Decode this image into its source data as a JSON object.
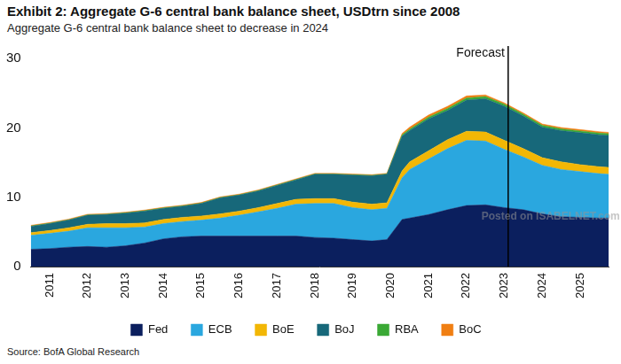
{
  "chart_data": {
    "type": "area",
    "title": "Exhibit 2: Aggregate G-6 central bank balance sheet, USDtrn since 2008",
    "subtitle": "Aggregate G-6 central bank balance sheet to decrease in 2024",
    "source": "Source: BofA Global Research",
    "annotations": [
      {
        "text": "Forecast",
        "x": 2023.1
      }
    ],
    "watermark": "Posted on ISABELNET.com",
    "stacked": true,
    "grid": false,
    "legend": "bottom",
    "x": [
      2010.5,
      2011,
      2011.5,
      2012,
      2012.5,
      2013,
      2013.5,
      2014,
      2014.5,
      2015,
      2015.5,
      2016,
      2016.5,
      2017,
      2017.5,
      2018,
      2018.5,
      2019,
      2019.5,
      2019.9,
      2020.3,
      2020.5,
      2021,
      2021.5,
      2022,
      2022.5,
      2023,
      2023.5,
      2024,
      2024.5,
      2025,
      2025.5,
      2025.75
    ],
    "xlim": [
      2010.5,
      2025.75
    ],
    "xticks": [
      2011,
      2012,
      2013,
      2014,
      2015,
      2016,
      2017,
      2018,
      2019,
      2020,
      2021,
      2022,
      2023,
      2024,
      2025
    ],
    "ylim": [
      0,
      30
    ],
    "yticks": [
      0,
      10,
      20,
      30
    ],
    "series": [
      {
        "name": "Fed",
        "color": "#0b1f5e",
        "values": [
          2.5,
          2.6,
          2.8,
          2.9,
          2.8,
          3.0,
          3.4,
          4.0,
          4.3,
          4.4,
          4.4,
          4.4,
          4.4,
          4.4,
          4.4,
          4.2,
          4.1,
          3.9,
          3.7,
          3.9,
          6.8,
          7.0,
          7.5,
          8.2,
          8.8,
          8.9,
          8.5,
          8.2,
          7.6,
          7.2,
          7.1,
          7.0,
          7.0
        ]
      },
      {
        "name": "ECB",
        "color": "#2aa7df",
        "values": [
          2.0,
          2.2,
          2.3,
          2.7,
          2.8,
          2.6,
          2.3,
          2.2,
          2.2,
          2.3,
          2.6,
          3.0,
          3.5,
          4.0,
          4.6,
          4.9,
          5.0,
          4.6,
          4.5,
          4.5,
          6.0,
          7.0,
          8.0,
          8.8,
          9.4,
          9.2,
          8.4,
          7.6,
          7.0,
          6.8,
          6.6,
          6.4,
          6.3
        ]
      },
      {
        "name": "BoE",
        "color": "#f2b705",
        "values": [
          0.4,
          0.4,
          0.5,
          0.5,
          0.6,
          0.6,
          0.6,
          0.6,
          0.6,
          0.6,
          0.6,
          0.6,
          0.6,
          0.7,
          0.7,
          0.7,
          0.7,
          0.8,
          0.8,
          0.8,
          1.0,
          1.1,
          1.2,
          1.3,
          1.3,
          1.3,
          1.3,
          1.2,
          1.1,
          1.1,
          1.0,
          1.0,
          1.0
        ]
      },
      {
        "name": "BoJ",
        "color": "#17687a",
        "values": [
          0.9,
          1.0,
          1.1,
          1.3,
          1.3,
          1.5,
          1.7,
          1.6,
          1.6,
          1.8,
          2.3,
          2.3,
          2.4,
          2.6,
          2.8,
          3.5,
          3.5,
          3.9,
          4.1,
          4.1,
          5.0,
          4.5,
          4.6,
          4.2,
          4.5,
          4.8,
          4.9,
          4.7,
          4.4,
          4.5,
          4.6,
          4.6,
          4.6
        ]
      },
      {
        "name": "RBA",
        "color": "#3aa935",
        "values": [
          0.05,
          0.05,
          0.05,
          0.05,
          0.05,
          0.05,
          0.05,
          0.05,
          0.05,
          0.05,
          0.05,
          0.05,
          0.05,
          0.05,
          0.05,
          0.05,
          0.05,
          0.05,
          0.05,
          0.05,
          0.2,
          0.2,
          0.25,
          0.3,
          0.3,
          0.3,
          0.3,
          0.25,
          0.25,
          0.25,
          0.25,
          0.25,
          0.25
        ]
      },
      {
        "name": "BoC",
        "color": "#f07f13",
        "values": [
          0.1,
          0.1,
          0.1,
          0.1,
          0.1,
          0.1,
          0.1,
          0.1,
          0.1,
          0.1,
          0.1,
          0.1,
          0.1,
          0.1,
          0.1,
          0.1,
          0.1,
          0.1,
          0.1,
          0.1,
          0.2,
          0.3,
          0.3,
          0.3,
          0.3,
          0.25,
          0.2,
          0.2,
          0.2,
          0.2,
          0.2,
          0.2,
          0.2
        ]
      }
    ]
  }
}
